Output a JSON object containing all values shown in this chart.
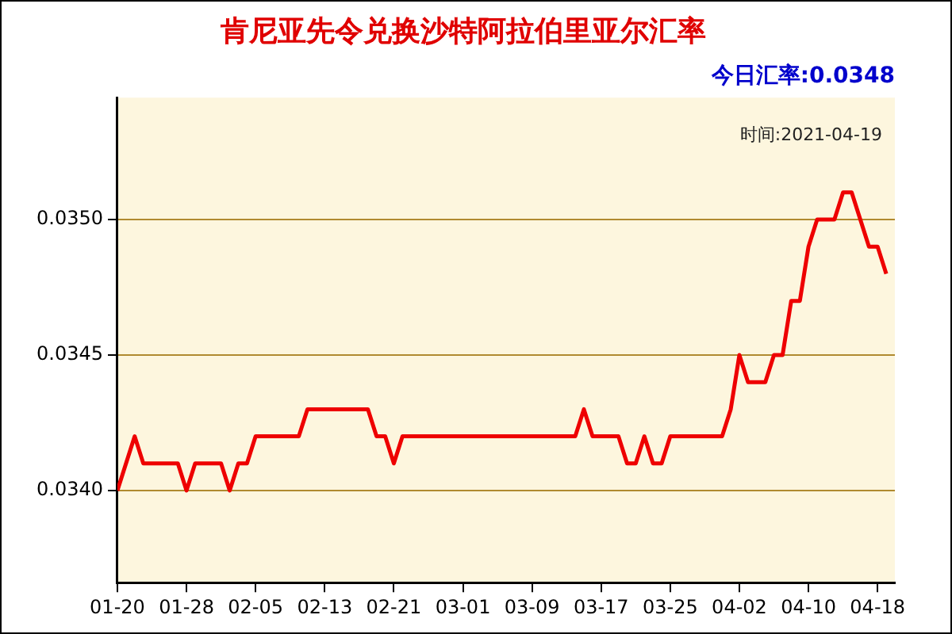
{
  "chart_data": {
    "type": "line",
    "title": "肯尼亚先令兑换沙特阿拉伯里亚尔汇率",
    "annotations": [
      "今日汇率:0.0348",
      "时间:2021-04-19"
    ],
    "x": [
      "2021-01-20",
      "2021-01-22",
      "2021-01-23",
      "2021-01-27",
      "2021-01-28",
      "2021-01-29",
      "2021-02-01",
      "2021-02-02",
      "2021-02-03",
      "2021-02-04",
      "2021-02-05",
      "2021-02-10",
      "2021-02-11",
      "2021-02-18",
      "2021-02-19",
      "2021-02-20",
      "2021-02-21",
      "2021-02-22",
      "2021-03-14",
      "2021-03-15",
      "2021-03-16",
      "2021-03-19",
      "2021-03-20",
      "2021-03-21",
      "2021-03-22",
      "2021-03-23",
      "2021-03-24",
      "2021-03-25",
      "2021-03-31",
      "2021-04-01",
      "2021-04-02",
      "2021-04-03",
      "2021-04-05",
      "2021-04-06",
      "2021-04-07",
      "2021-04-08",
      "2021-04-09",
      "2021-04-10",
      "2021-04-11",
      "2021-04-13",
      "2021-04-14",
      "2021-04-15",
      "2021-04-17",
      "2021-04-18",
      "2021-04-19"
    ],
    "series": [
      {
        "color": "#ee0000",
        "values": [
          0.034,
          0.0342,
          0.0341,
          0.0341,
          0.034,
          0.0341,
          0.0341,
          0.034,
          0.0341,
          0.0341,
          0.0342,
          0.0342,
          0.0343,
          0.0343,
          0.0342,
          0.0342,
          0.0341,
          0.0342,
          0.0342,
          0.0343,
          0.0342,
          0.0342,
          0.0341,
          0.0341,
          0.0342,
          0.0341,
          0.0341,
          0.0342,
          0.0342,
          0.0343,
          0.0345,
          0.0344,
          0.0344,
          0.0345,
          0.0345,
          0.0347,
          0.0347,
          0.0349,
          0.035,
          0.035,
          0.0351,
          0.0351,
          0.0349,
          0.0349,
          0.0348
        ]
      }
    ],
    "xlim": [
      "2021-01-20",
      "2021-04-20"
    ],
    "xticks": [
      {
        "value": "2021-01-20",
        "label": "01-20"
      },
      {
        "value": "2021-01-28",
        "label": "01-28"
      },
      {
        "value": "2021-02-05",
        "label": "02-05"
      },
      {
        "value": "2021-02-13",
        "label": "02-13"
      },
      {
        "value": "2021-02-21",
        "label": "02-21"
      },
      {
        "value": "2021-03-01",
        "label": "03-01"
      },
      {
        "value": "2021-03-09",
        "label": "03-09"
      },
      {
        "value": "2021-03-17",
        "label": "03-17"
      },
      {
        "value": "2021-03-25",
        "label": "03-25"
      },
      {
        "value": "2021-04-02",
        "label": "04-02"
      },
      {
        "value": "2021-04-10",
        "label": "04-10"
      },
      {
        "value": "2021-04-18",
        "label": "04-18"
      }
    ],
    "ylim": [
      0.03366,
      0.03545
    ],
    "yticks": [
      {
        "value": 0.034,
        "label": "0.0340"
      },
      {
        "value": 0.0345,
        "label": "0.0345"
      },
      {
        "value": 0.035,
        "label": "0.0350"
      }
    ],
    "grid": "y",
    "legend": false,
    "marker": "none",
    "line_style": "solid"
  }
}
